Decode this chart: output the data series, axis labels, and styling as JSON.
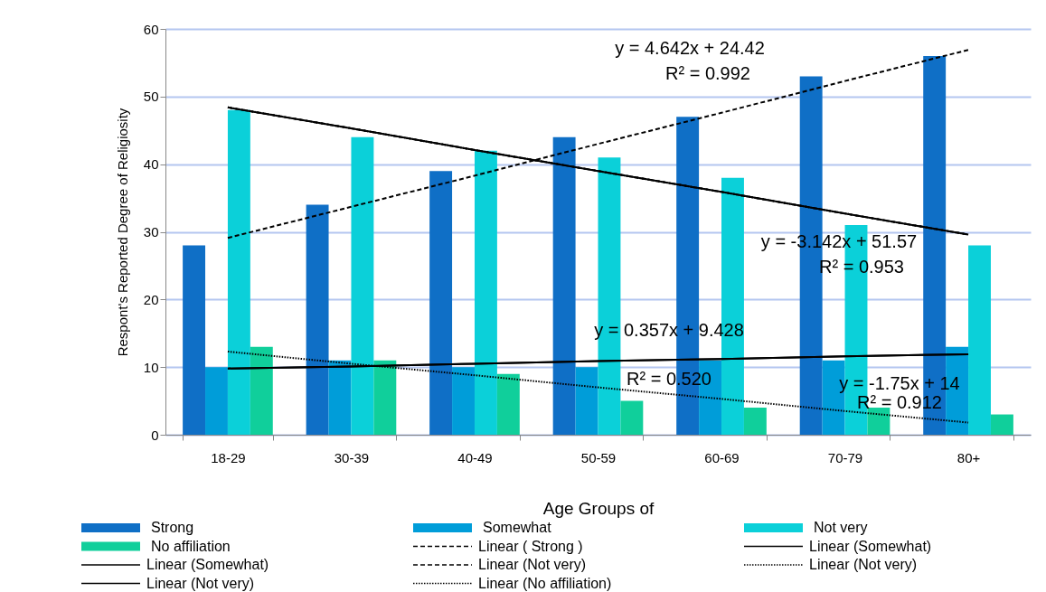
{
  "chart_data": {
    "type": "bar",
    "xlabel": "Age Groups of",
    "ylabel": "Respont's Reported Degree of Religiosity",
    "categories": [
      "18-29",
      "30-39",
      "40-49",
      "50-59",
      "60-69",
      "70-79",
      "80+"
    ],
    "ylim": [
      0,
      60
    ],
    "yticks": [
      0,
      10,
      20,
      30,
      40,
      50,
      60
    ],
    "grid": "y",
    "legend": "bottom",
    "series": [
      {
        "name": "Strong",
        "color": "#0f6fc6",
        "values": [
          28,
          34,
          39,
          44,
          47,
          53,
          56
        ]
      },
      {
        "name": "Somewhat",
        "color": "#009dd9",
        "values": [
          10,
          11,
          10,
          10,
          11,
          11,
          13
        ]
      },
      {
        "name": "Not very",
        "color": "#0bd0d9",
        "values": [
          48,
          44,
          42,
          41,
          38,
          31,
          28
        ]
      },
      {
        "name": "No affiliation",
        "color": "#10cf9b",
        "values": [
          13,
          11,
          9,
          5,
          4,
          4,
          3
        ]
      },
      {
        "name": "Linear ( Strong  )",
        "type": "line",
        "color": "#000000",
        "line_style": "dashed",
        "values": [
          29.1,
          33.7,
          38.3,
          43.0,
          47.6,
          52.3,
          56.9
        ]
      },
      {
        "name": "Linear (Somewhat)",
        "type": "line",
        "color": "#000000",
        "line_style": "solid",
        "values": [
          9.8,
          10.1,
          10.5,
          10.9,
          11.2,
          11.6,
          11.9
        ]
      },
      {
        "name": "Linear (Somewhat)",
        "type": "line",
        "color": "#000000",
        "line_style": "solid",
        "values": [
          9.8,
          10.1,
          10.5,
          10.9,
          11.2,
          11.6,
          11.9
        ]
      },
      {
        "name": "Linear (Not very)",
        "type": "line",
        "color": "#000000",
        "line_style": "dashed",
        "values": [
          48.4,
          45.3,
          42.1,
          39.0,
          35.9,
          32.7,
          29.6
        ]
      },
      {
        "name": "Linear (Not very)",
        "type": "line",
        "color": "#000000",
        "line_style": "dotted",
        "values": [
          48.4,
          45.3,
          42.1,
          39.0,
          35.9,
          32.7,
          29.6
        ]
      },
      {
        "name": "Linear (Not very)",
        "type": "line",
        "color": "#000000",
        "line_style": "solid",
        "values": [
          48.4,
          45.3,
          42.1,
          39.0,
          35.9,
          32.7,
          29.6
        ]
      },
      {
        "name": "Linear (No affiliation)",
        "type": "line",
        "color": "#000000",
        "line_style": "dotted",
        "values": [
          12.3,
          10.5,
          8.8,
          7.0,
          5.3,
          3.5,
          1.8
        ]
      }
    ],
    "annotations": [
      "y = 4.642x + 24.42",
      "R² = 0.992",
      "y = -3.142x + 51.57",
      "R² = 0.953",
      "y = 0.357x + 9.428",
      "R² = 0.520",
      "y = -1.75x + 14",
      "R² = 0.912"
    ]
  }
}
